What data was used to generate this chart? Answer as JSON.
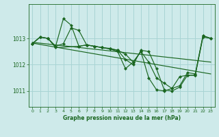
{
  "title": "Graphe pression niveau de la mer (hPa)",
  "bg_color": "#ceeaea",
  "grid_color": "#a8d4d4",
  "line_color": "#1a6620",
  "xlim": [
    -0.5,
    23.5
  ],
  "ylim": [
    1010.4,
    1014.3
  ],
  "yticks": [
    1011,
    1012,
    1013
  ],
  "xticks": [
    0,
    1,
    2,
    3,
    4,
    5,
    6,
    7,
    8,
    9,
    10,
    11,
    12,
    13,
    14,
    15,
    16,
    17,
    18,
    19,
    20,
    21,
    22,
    23
  ],
  "series1_x": [
    0,
    1,
    2,
    3,
    4,
    5,
    6,
    7,
    8,
    9,
    10,
    11,
    12,
    13,
    14,
    15,
    16,
    17,
    18,
    19,
    20,
    21,
    22,
    23
  ],
  "series1_y": [
    1012.8,
    1013.05,
    1013.0,
    1012.7,
    1013.75,
    1013.5,
    1012.7,
    1012.75,
    1012.7,
    1012.65,
    1012.6,
    1012.5,
    1011.85,
    1012.1,
    1012.5,
    1011.5,
    1011.05,
    1011.0,
    1011.1,
    1011.55,
    1011.6,
    1011.6,
    1013.1,
    1013.0
  ],
  "series2_x": [
    0,
    1,
    2,
    3,
    4,
    5,
    6,
    7,
    8,
    9,
    10,
    11,
    12,
    13,
    14,
    15,
    16,
    17,
    18,
    19,
    20,
    21,
    22,
    23
  ],
  "series2_y": [
    1012.8,
    1013.05,
    1013.0,
    1012.7,
    1012.8,
    1013.4,
    1013.3,
    1012.75,
    1012.7,
    1012.65,
    1012.6,
    1012.55,
    1012.2,
    1012.0,
    1012.55,
    1012.5,
    1011.85,
    1011.05,
    1011.0,
    1011.15,
    1011.6,
    1011.6,
    1013.05,
    1013.0
  ],
  "series3_x": [
    0,
    1,
    2,
    3,
    6,
    7,
    8,
    9,
    10,
    11,
    12,
    13,
    14,
    15,
    16,
    17,
    18,
    19,
    20,
    21,
    22,
    23
  ],
  "series3_y": [
    1012.8,
    1013.05,
    1013.0,
    1012.65,
    1012.7,
    1012.75,
    1012.7,
    1012.65,
    1012.62,
    1012.55,
    1012.4,
    1012.1,
    1012.5,
    1012.1,
    1011.5,
    1011.3,
    1011.1,
    1011.2,
    1011.7,
    1011.65,
    1013.1,
    1013.0
  ],
  "trend1_x": [
    0,
    23
  ],
  "trend1_y": [
    1012.85,
    1012.1
  ],
  "trend2_x": [
    0,
    23
  ],
  "trend2_y": [
    1012.82,
    1011.65
  ]
}
